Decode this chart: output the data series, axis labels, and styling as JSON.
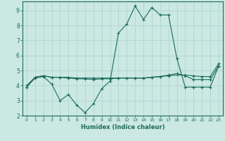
{
  "xlabel": "Humidex (Indice chaleur)",
  "background_color": "#cbe8e3",
  "grid_color": "#b0d5cf",
  "line_color": "#1a6b5a",
  "xlim": [
    -0.5,
    23.5
  ],
  "ylim": [
    2.0,
    9.6
  ],
  "yticks": [
    2,
    3,
    4,
    5,
    6,
    7,
    8,
    9
  ],
  "xticks": [
    0,
    1,
    2,
    3,
    4,
    5,
    6,
    7,
    8,
    9,
    10,
    11,
    12,
    13,
    14,
    15,
    16,
    17,
    18,
    19,
    20,
    21,
    22,
    23
  ],
  "series1": [
    3.9,
    4.5,
    4.6,
    4.1,
    3.0,
    3.4,
    2.7,
    2.2,
    2.8,
    3.8,
    4.3,
    7.5,
    8.1,
    9.3,
    8.4,
    9.2,
    8.7,
    8.7,
    5.8,
    3.9,
    3.9,
    3.9,
    3.9,
    5.3
  ],
  "series2": [
    4.0,
    4.55,
    4.65,
    4.55,
    4.55,
    4.55,
    4.5,
    4.5,
    4.5,
    4.5,
    4.5,
    4.5,
    4.5,
    4.5,
    4.5,
    4.55,
    4.6,
    4.65,
    4.7,
    4.7,
    4.65,
    4.6,
    4.6,
    5.45
  ],
  "series3": [
    3.9,
    4.55,
    4.65,
    4.55,
    4.55,
    4.5,
    4.45,
    4.45,
    4.4,
    4.45,
    4.45,
    4.5,
    4.5,
    4.5,
    4.5,
    4.55,
    4.6,
    4.7,
    4.8,
    4.65,
    4.4,
    4.4,
    4.4,
    5.3
  ]
}
